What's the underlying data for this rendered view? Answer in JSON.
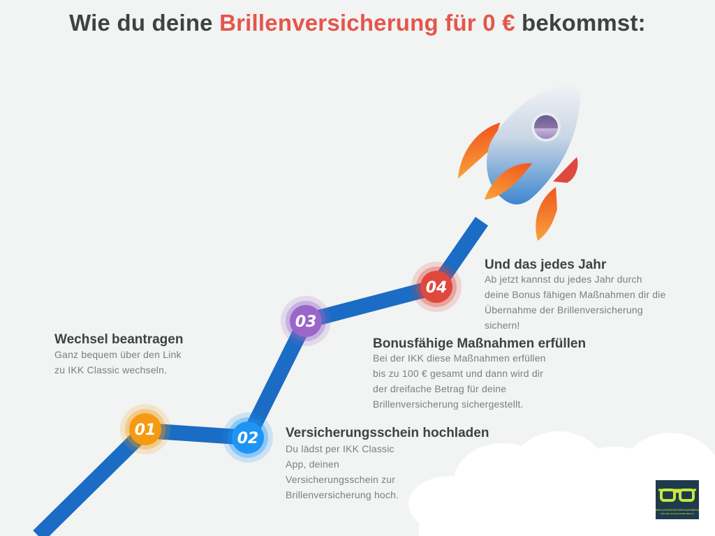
{
  "header": {
    "title_prefix": "Wie du deine ",
    "title_accent": "Brillenversicherung für 0 €",
    "title_suffix": " bekommst:",
    "accent_color": "#e4564a"
  },
  "steps": [
    {
      "number": "01",
      "title": "Wechsel beantragen",
      "text": "Ganz bequem über den Link\nzu IKK Classic wechseln.",
      "color": "#f59a12"
    },
    {
      "number": "02",
      "title": "Versicherungsschein hochladen",
      "text": "Du lädst per IKK Classic\nApp, deinen\nVersicherungsschein zur\nBrillenversicherung hoch.",
      "color": "#1e95f5"
    },
    {
      "number": "03",
      "title": "Bonusfähige Maßnahmen erfüllen",
      "text": "Bei der IKK diese Maßnahmen erfüllen\nbis zu 100 € gesamt und dann wird dir\nder dreifache Betrag für deine\nBrillenversicherung sichergestellt.",
      "color": "#9a66c9"
    },
    {
      "number": "04",
      "title": "Und das jedes Jahr",
      "text": "Ab jetzt kannst du jedes Jahr durch\ndeine Bonus fähigen Maßnahmen dir die\nÜbernahme der Brillenversicherung\nsichern!",
      "color": "#e0483d"
    }
  ],
  "logo": {
    "icon": "glasses-icon",
    "brand": "BRILLENVERSICHERUNGSBEDARF.COM",
    "tagline": "FÜR DEN SCHUTZ IHRER BRILLE"
  }
}
